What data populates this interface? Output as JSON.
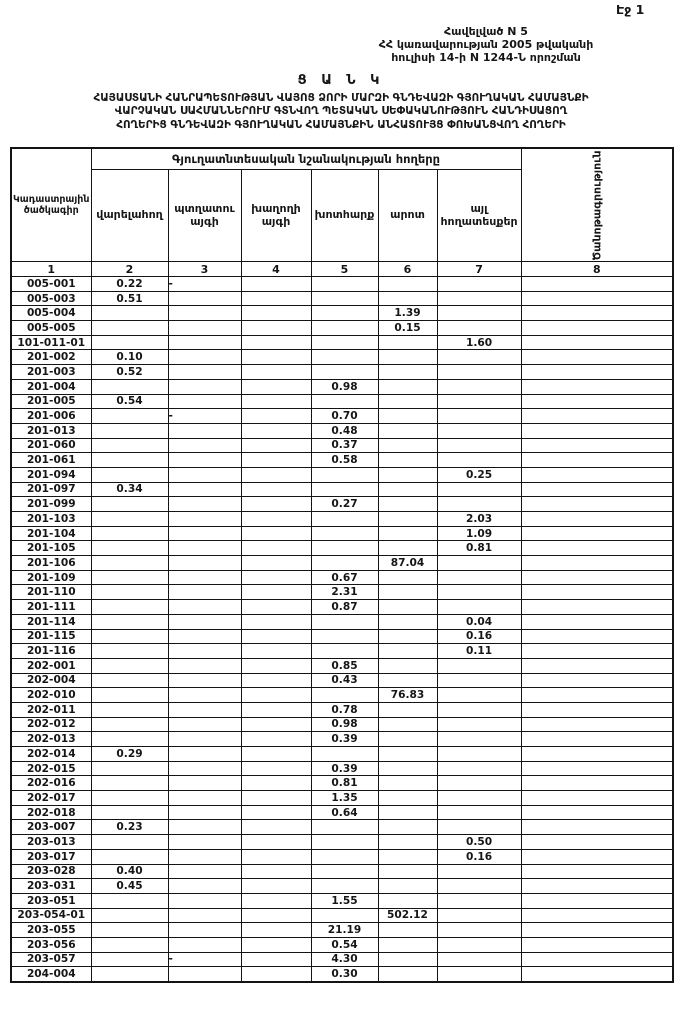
{
  "page": {
    "page_number": "Էջ 1",
    "appendix_line1": "Հավելված N 5",
    "appendix_line2": "ՀՀ կառավարության 2005 թվականի",
    "appendix_line3": "հուլիսի 14-ի N 1244-Ն որոշման",
    "title": "Ց Ա Ն Կ",
    "subtitle_line1": "ՀԱՅԱՍՏԱՆԻ ՀԱՆՐԱՊԵՏՈՒԹՅԱՆ ՎԱՅՈՑ ՁՈՐԻ ՄԱՐԶԻ ԳՆԴԵՎԱԶԻ ԳՅՈՒՂԱԿԱՆ ՀԱՄԱՅՆՔԻ",
    "subtitle_line2": "ՎԱՐՉԱԿԱՆ ՍԱՀՄԱՆՆԵՐՈՒՄ ԳՏՆՎՈՂ ՊԵՏԱԿԱՆ ՍԵՓԱԿԱՆՈՒԹՅՈՒՆ ՀԱՆԴԻՍԱՑՈՂ",
    "subtitle_line3": "ՀՈՂԵՐԻՑ ԳՆԴԵՎԱԶԻ ԳՅՈՒՂԱԿԱՆ ՀԱՄԱՅՆՔԻՆ ԱՆՀԱՏՈՒՅՑ ՓՈԽԱՆՑՎՈՂ ՀՈՂԵՐԻ"
  },
  "table": {
    "code_header": "Կադաստրային ծածկագիր",
    "group_header": "Գյուղատնտեսական նշանակության հողերը",
    "note_header": "Ծանոթագրություն",
    "sub_headers": [
      "վարելահող",
      "պտղատու այգի",
      "խաղողի այգի",
      "խոտհարք",
      "արոտ",
      "այլ հողատեսքեր"
    ],
    "number_row": [
      "1",
      "2",
      "3",
      "4",
      "5",
      "6",
      "7",
      "8"
    ],
    "rows": [
      [
        "005-001",
        "0.22",
        "-",
        "",
        "",
        "",
        "",
        ""
      ],
      [
        "005-003",
        "0.51",
        "",
        "",
        "",
        "",
        "",
        ""
      ],
      [
        "005-004",
        "",
        "",
        "",
        "",
        "1.39",
        "",
        ""
      ],
      [
        "005-005",
        "",
        "",
        "",
        "",
        "0.15",
        "",
        ""
      ],
      [
        "101-011-01",
        "",
        "",
        "",
        "",
        "",
        "1.60",
        ""
      ],
      [
        "201-002",
        "0.10",
        "",
        "",
        "",
        "",
        "",
        ""
      ],
      [
        "201-003",
        "0.52",
        "",
        "",
        "",
        "",
        "",
        ""
      ],
      [
        "201-004",
        "",
        "",
        "",
        "0.98",
        "",
        "",
        ""
      ],
      [
        "201-005",
        "0.54",
        "",
        "",
        "",
        "",
        "",
        ""
      ],
      [
        "201-006",
        "",
        "-",
        "",
        "0.70",
        "",
        "",
        ""
      ],
      [
        "201-013",
        "",
        "",
        "",
        "0.48",
        "",
        "",
        ""
      ],
      [
        "201-060",
        "",
        "",
        "",
        "0.37",
        "",
        "",
        ""
      ],
      [
        "201-061",
        "",
        "",
        "",
        "0.58",
        "",
        "",
        ""
      ],
      [
        "201-094",
        "",
        "",
        "",
        "",
        "",
        "0.25",
        ""
      ],
      [
        "201-097",
        "0.34",
        "",
        "",
        "",
        "",
        "",
        ""
      ],
      [
        "201-099",
        "",
        "",
        "",
        "0.27",
        "",
        "",
        ""
      ],
      [
        "201-103",
        "",
        "",
        "",
        "",
        "",
        "2.03",
        ""
      ],
      [
        "201-104",
        "",
        "",
        "",
        "",
        "",
        "1.09",
        ""
      ],
      [
        "201-105",
        "",
        "",
        "",
        "",
        "",
        "0.81",
        ""
      ],
      [
        "201-106",
        "",
        "",
        "",
        "",
        "87.04",
        "",
        ""
      ],
      [
        "201-109",
        "",
        "",
        "",
        "0.67",
        "",
        "",
        ""
      ],
      [
        "201-110",
        "",
        "",
        "",
        "2.31",
        "",
        "",
        ""
      ],
      [
        "201-111",
        "",
        "",
        "",
        "0.87",
        "",
        "",
        ""
      ],
      [
        "201-114",
        "",
        "",
        "",
        "",
        "",
        "0.04",
        ""
      ],
      [
        "201-115",
        "",
        "",
        "",
        "",
        "",
        "0.16",
        ""
      ],
      [
        "201-116",
        "",
        "",
        "",
        "",
        "",
        "0.11",
        ""
      ],
      [
        "202-001",
        "",
        "",
        "",
        "0.85",
        "",
        "",
        ""
      ],
      [
        "202-004",
        "",
        "",
        "",
        "0.43",
        "",
        "",
        ""
      ],
      [
        "202-010",
        "",
        "",
        "",
        "",
        "76.83",
        "",
        ""
      ],
      [
        "202-011",
        "",
        "",
        "",
        "0.78",
        "",
        "",
        ""
      ],
      [
        "202-012",
        "",
        "",
        "",
        "0.98",
        "",
        "",
        ""
      ],
      [
        "202-013",
        "",
        "",
        "",
        "0.39",
        "",
        "",
        ""
      ],
      [
        "202-014",
        "0.29",
        "",
        "",
        "",
        "",
        "",
        ""
      ],
      [
        "202-015",
        "",
        "",
        "",
        "0.39",
        "",
        "",
        ""
      ],
      [
        "202-016",
        "",
        "",
        "",
        "0.81",
        "",
        "",
        ""
      ],
      [
        "202-017",
        "",
        "",
        "",
        "1.35",
        "",
        "",
        ""
      ],
      [
        "202-018",
        "",
        "",
        "",
        "0.64",
        "",
        "",
        ""
      ],
      [
        "203-007",
        "0.23",
        "",
        "",
        "",
        "",
        "",
        ""
      ],
      [
        "203-013",
        "",
        "",
        "",
        "",
        "",
        "0.50",
        ""
      ],
      [
        "203-017",
        "",
        "",
        "",
        "",
        "",
        "0.16",
        ""
      ],
      [
        "203-028",
        "0.40",
        "",
        "",
        "",
        "",
        "",
        ""
      ],
      [
        "203-031",
        "0.45",
        "",
        "",
        "",
        "",
        "",
        ""
      ],
      [
        "203-051",
        "",
        "",
        "",
        "1.55",
        "",
        "",
        ""
      ],
      [
        "203-054-01",
        "",
        "",
        "",
        "",
        "502.12",
        "",
        ""
      ],
      [
        "203-055",
        "",
        "",
        "",
        "21.19",
        "",
        "",
        ""
      ],
      [
        "203-056",
        "",
        "",
        "",
        "0.54",
        "",
        "",
        ""
      ],
      [
        "203-057",
        "",
        "-",
        "",
        "4.30",
        "",
        "",
        ""
      ],
      [
        "204-004",
        "",
        "",
        "",
        "0.30",
        "",
        "",
        ""
      ]
    ]
  }
}
